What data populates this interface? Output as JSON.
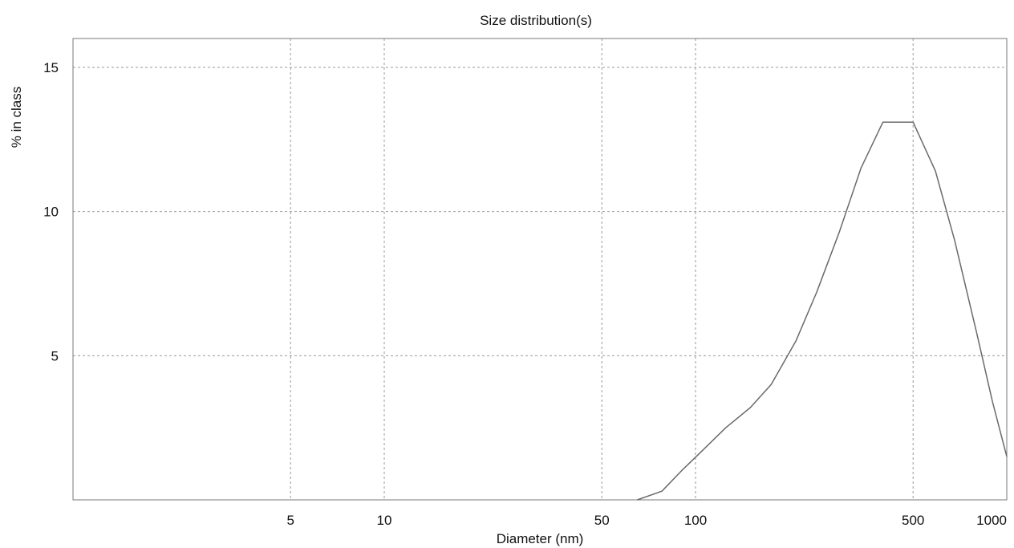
{
  "chart_data": {
    "type": "line",
    "title": "Size distribution(s)",
    "xlabel": "Diameter (nm)",
    "ylabel": "% in class",
    "x_scale": "log",
    "xlim": [
      1,
      1000
    ],
    "ylim": [
      0,
      16
    ],
    "grid": true,
    "x_ticks": [
      5,
      10,
      50,
      100,
      500,
      1000
    ],
    "x_tick_labels": [
      "5",
      "10",
      "50",
      "100",
      "500",
      "1000"
    ],
    "y_ticks": [
      5,
      10,
      15
    ],
    "y_tick_labels": [
      "5",
      "10",
      "15"
    ],
    "series": [
      {
        "x": [
          65,
          78,
          90,
          105,
          125,
          150,
          175,
          210,
          245,
          290,
          340,
          400,
          450,
          500,
          590,
          680,
          800,
          900,
          1000
        ],
        "y": [
          0,
          0.3,
          1.0,
          1.7,
          2.5,
          3.2,
          4.0,
          5.5,
          7.2,
          9.3,
          11.5,
          13.1,
          13.1,
          13.1,
          11.4,
          9.0,
          5.8,
          3.4,
          1.5
        ]
      }
    ]
  }
}
